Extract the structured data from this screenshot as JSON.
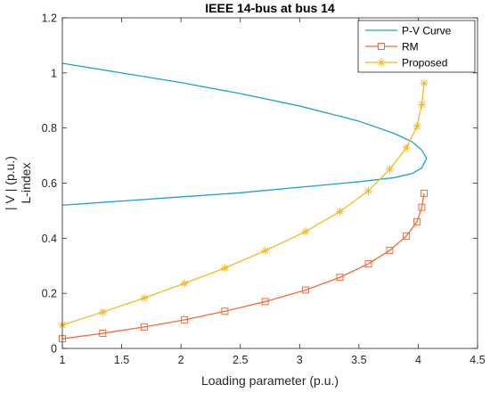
{
  "chart_data": {
    "type": "line",
    "title": "IEEE 14-bus at bus 14",
    "xlabel": "Loading parameter (p.u.)",
    "ylabel": [
      "| V | (p.u.)",
      "L-index"
    ],
    "xlim": [
      1,
      4.5
    ],
    "ylim": [
      0,
      1.2
    ],
    "xticks": [
      "1",
      "1.5",
      "2",
      "2.5",
      "3",
      "3.5",
      "4",
      "4.5"
    ],
    "yticks": [
      "0",
      "0.2",
      "0.4",
      "0.6",
      "0.8",
      "1",
      "1.2"
    ],
    "grid": false,
    "legend_position": "top-right",
    "series": [
      {
        "name": "P-V Curve",
        "color": "#1ba1d4",
        "marker": "none",
        "x": [
          1.0,
          1.5,
          2.0,
          2.5,
          3.0,
          3.5,
          3.8,
          3.95,
          4.03,
          4.07,
          4.03,
          3.95,
          3.8,
          3.5,
          3.0,
          2.5,
          2.0,
          1.5,
          1.0
        ],
        "y": [
          1.035,
          1.0,
          0.965,
          0.925,
          0.88,
          0.825,
          0.78,
          0.75,
          0.72,
          0.69,
          0.655,
          0.635,
          0.62,
          0.605,
          0.585,
          0.565,
          0.55,
          0.535,
          0.52
        ]
      },
      {
        "name": "RM",
        "color": "#f26b3a",
        "marker": "square",
        "x": [
          1.0,
          1.34,
          1.69,
          2.03,
          2.37,
          2.71,
          3.05,
          3.34,
          3.58,
          3.76,
          3.9,
          3.99,
          4.03,
          4.05
        ],
        "y": [
          0.035,
          0.055,
          0.078,
          0.104,
          0.135,
          0.17,
          0.212,
          0.258,
          0.307,
          0.356,
          0.408,
          0.46,
          0.512,
          0.563
        ]
      },
      {
        "name": "Proposed",
        "color": "#f7b922",
        "marker": "asterisk",
        "x": [
          1.0,
          1.34,
          1.69,
          2.03,
          2.37,
          2.71,
          3.05,
          3.34,
          3.58,
          3.76,
          3.9,
          3.99,
          4.03,
          4.05
        ],
        "y": [
          0.085,
          0.132,
          0.183,
          0.236,
          0.292,
          0.355,
          0.424,
          0.497,
          0.572,
          0.65,
          0.728,
          0.806,
          0.885,
          0.963
        ]
      }
    ]
  }
}
